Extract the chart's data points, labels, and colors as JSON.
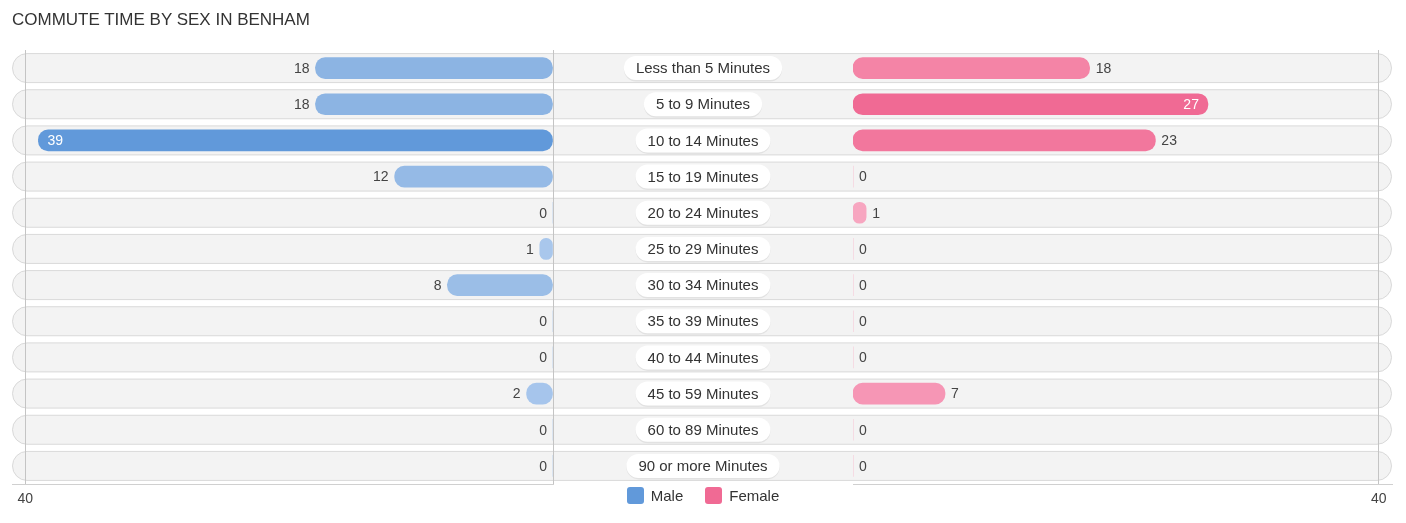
{
  "chart_data": [
    {
      "type": "bar",
      "title": "COMMUTE TIME BY SEX IN BENHAM",
      "orientation": "horizontal",
      "categories": [
        "Less than 5 Minutes",
        "5 to 9 Minutes",
        "10 to 14 Minutes",
        "15 to 19 Minutes",
        "20 to 24 Minutes",
        "25 to 29 Minutes",
        "30 to 34 Minutes",
        "35 to 39 Minutes",
        "40 to 44 Minutes",
        "45 to 59 Minutes",
        "60 to 89 Minutes",
        "90 or more Minutes"
      ],
      "series": [
        {
          "name": "Male",
          "color": "#6199da",
          "colors": [
            "#8cb4e3",
            "#8cb4e3",
            "#6199da",
            "#95bae6",
            "#abc9ed",
            "#a9c7ec",
            "#9bbee7",
            "#abc9ed",
            "#abc9ed",
            "#a6c5ec",
            "#abc9ed",
            "#abc9ed"
          ],
          "values": [
            18,
            18,
            39,
            12,
            0,
            1,
            8,
            0,
            0,
            2,
            0,
            0
          ]
        }
      ],
      "xlim": [
        41,
        0
      ],
      "xticks": [
        40,
        {
          "value": 0,
          "label": null
        }
      ],
      "grid": "x",
      "legend": "bottom",
      "data_labels": true
    },
    {
      "type": "bar",
      "orientation": "horizontal",
      "categories": [
        null,
        null,
        null,
        null,
        null,
        null,
        null,
        null,
        null,
        null,
        null,
        null
      ],
      "series": [
        {
          "name": "Female",
          "color": "#f06a94",
          "colors": [
            "#f484a6",
            "#f06a94",
            "#f2779d",
            "#f8a9c3",
            "#f7a6c0",
            "#f8a9c3",
            "#f8a9c3",
            "#f8a9c3",
            "#f8a9c3",
            "#f696b5",
            "#f8a9c3",
            "#f8a9c3"
          ],
          "values": [
            18,
            27,
            23,
            0,
            1,
            0,
            0,
            0,
            0,
            7,
            0,
            0
          ]
        }
      ],
      "xlim": [
        0,
        41
      ],
      "xticks": [
        40
      ],
      "grid": "x",
      "legend": "bottom",
      "data_labels": true
    }
  ]
}
